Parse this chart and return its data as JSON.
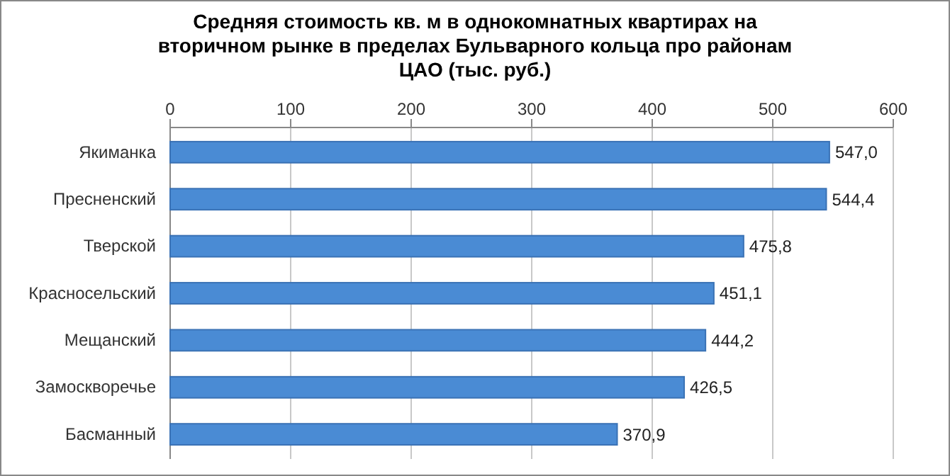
{
  "chart_data": {
    "type": "bar",
    "orientation": "horizontal",
    "title": "Средняя стоимость кв. м в однокомнатных квартирах на вторичном рынке в пределах Бульварного кольца про районам ЦАО (тыс. руб.)",
    "categories": [
      "Якиманка",
      "Пресненский",
      "Тверской",
      "Красносельский",
      "Мещанский",
      "Замоскворечье",
      "Басманный"
    ],
    "values": [
      547.0,
      544.4,
      475.8,
      451.1,
      444.2,
      426.5,
      370.9
    ],
    "value_labels": [
      "547,0",
      "544,4",
      "475,8",
      "451,1",
      "444,2",
      "426,5",
      "370,9"
    ],
    "color": "#4a8bd4",
    "xlim": [
      0,
      600
    ],
    "xticks": [
      0,
      100,
      200,
      300,
      400,
      500,
      600
    ],
    "grid": "x"
  }
}
